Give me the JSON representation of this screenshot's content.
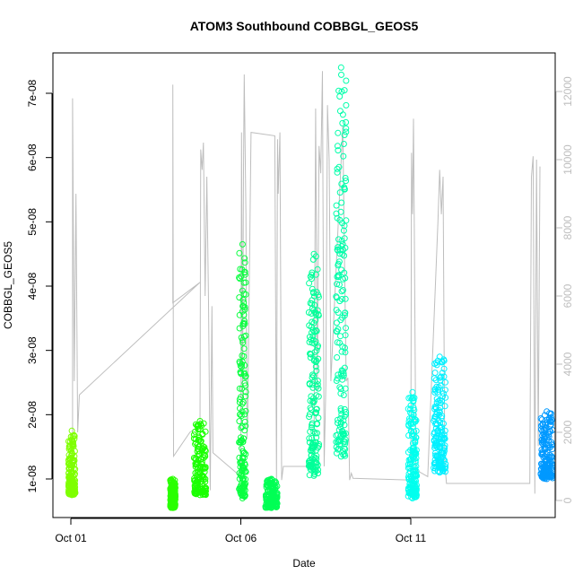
{
  "chart_data": {
    "type": "scatter",
    "title": "ATOM3 Southbound COBBGL_GEOS5",
    "xlabel": "Date",
    "ylabel": "COBBGL_GEOS5",
    "x_unit": "days",
    "xlim": [
      0.0,
      14.0
    ],
    "ylim": [
      5e-09,
      7.7e-08
    ],
    "y2lim": [
      -300,
      12700
    ],
    "x_ticks": [
      {
        "label": "Oct 01",
        "value": 0
      },
      {
        "label": "Oct 06",
        "value": 5
      },
      {
        "label": "Oct 11",
        "value": 10
      }
    ],
    "y_ticks": [
      {
        "label": "1e-08",
        "value": 1e-08
      },
      {
        "label": "2e-08",
        "value": 2e-08
      },
      {
        "label": "3e-08",
        "value": 3e-08
      },
      {
        "label": "4e-08",
        "value": 4e-08
      },
      {
        "label": "5e-08",
        "value": 5e-08
      },
      {
        "label": "6e-08",
        "value": 6e-08
      },
      {
        "label": "7e-08",
        "value": 7e-08
      }
    ],
    "y2_ticks": [
      {
        "label": "0",
        "value": 0
      },
      {
        "label": "2000",
        "value": 2000
      },
      {
        "label": "4000",
        "value": 4000
      },
      {
        "label": "6000",
        "value": 6000
      },
      {
        "label": "8000",
        "value": 8000
      },
      {
        "label": "10000",
        "value": 10000
      },
      {
        "label": "12000",
        "value": 12000
      }
    ],
    "scatter_clusters": [
      {
        "x": 0.03,
        "width": 0.2,
        "ymin": 7.5e-09,
        "ymax": 1.75e-08,
        "color": "#7fff00"
      },
      {
        "x": 3.0,
        "width": 0.15,
        "ymin": 5.5e-09,
        "ymax": 1e-08,
        "color": "#2aff00"
      },
      {
        "x": 3.8,
        "width": 0.35,
        "ymin": 7.5e-09,
        "ymax": 1.9e-08,
        "color": "#1aff00"
      },
      {
        "x": 5.05,
        "width": 0.2,
        "ymin": 7e-09,
        "ymax": 4.65e-08,
        "color": "#0aff40"
      },
      {
        "x": 5.9,
        "width": 0.35,
        "ymin": 5.5e-09,
        "ymax": 1e-08,
        "color": "#00ff55"
      },
      {
        "x": 7.15,
        "width": 0.3,
        "ymin": 1.05e-08,
        "ymax": 4.5e-08,
        "color": "#00ff99"
      },
      {
        "x": 7.95,
        "width": 0.3,
        "ymin": 1.35e-08,
        "ymax": 7.4e-08,
        "color": "#00ffaa"
      },
      {
        "x": 10.05,
        "width": 0.25,
        "ymin": 7e-09,
        "ymax": 2.35e-08,
        "color": "#00ffee"
      },
      {
        "x": 10.85,
        "width": 0.35,
        "ymin": 1.1e-08,
        "ymax": 2.9e-08,
        "color": "#00f0ff"
      },
      {
        "x": 14.0,
        "width": 0.35,
        "ymin": 1e-08,
        "ymax": 2.05e-08,
        "color": "#0099ff"
      }
    ],
    "secondary_series": {
      "name": "",
      "color": "#bebebe",
      "points": [
        [
          0.05,
          1800
        ],
        [
          0.05,
          11800
        ],
        [
          0.1,
          3500
        ],
        [
          0.15,
          9000
        ],
        [
          0.2,
          2000
        ],
        [
          0.25,
          3100
        ],
        [
          3.8,
          6400
        ],
        [
          3.0,
          5800
        ],
        [
          3.0,
          12200
        ],
        [
          3.02,
          1300
        ],
        [
          3.5,
          2000
        ],
        [
          3.8,
          2200
        ],
        [
          3.82,
          10300
        ],
        [
          3.86,
          9700
        ],
        [
          3.9,
          10500
        ],
        [
          3.95,
          6000
        ],
        [
          4.0,
          9500
        ],
        [
          4.05,
          5800
        ],
        [
          4.1,
          300
        ],
        [
          4.15,
          5700
        ],
        [
          4.18,
          1400
        ],
        [
          5.0,
          700
        ],
        [
          5.02,
          10800
        ],
        [
          5.05,
          2800
        ],
        [
          5.08,
          9700
        ],
        [
          5.1,
          12500
        ],
        [
          5.15,
          8400
        ],
        [
          5.18,
          1800
        ],
        [
          5.2,
          2300
        ],
        [
          5.3,
          10800
        ],
        [
          6.0,
          10700
        ],
        [
          6.05,
          500
        ],
        [
          6.08,
          10600
        ],
        [
          6.1,
          9000
        ],
        [
          6.15,
          10800
        ],
        [
          6.2,
          600
        ],
        [
          6.25,
          1000
        ],
        [
          7.15,
          1000
        ],
        [
          7.2,
          11500
        ],
        [
          7.25,
          3200
        ],
        [
          7.3,
          10400
        ],
        [
          7.35,
          9600
        ],
        [
          7.4,
          12600
        ],
        [
          7.45,
          1000
        ],
        [
          7.5,
          3400
        ],
        [
          7.55,
          11600
        ],
        [
          7.6,
          10000
        ],
        [
          7.65,
          3500
        ],
        [
          8.0,
          11000
        ],
        [
          8.05,
          7000
        ],
        [
          8.1,
          3500
        ],
        [
          8.15,
          3600
        ],
        [
          8.2,
          600
        ],
        [
          8.25,
          800
        ],
        [
          8.3,
          650
        ],
        [
          10.0,
          600
        ],
        [
          10.02,
          10200
        ],
        [
          10.05,
          8400
        ],
        [
          10.08,
          11200
        ],
        [
          10.1,
          8500
        ],
        [
          10.15,
          900
        ],
        [
          10.5,
          700
        ],
        [
          10.8,
          8200
        ],
        [
          10.85,
          9700
        ],
        [
          10.9,
          8400
        ],
        [
          10.95,
          9500
        ],
        [
          11.0,
          1100
        ],
        [
          11.05,
          500
        ],
        [
          13.5,
          500
        ],
        [
          13.55,
          9500
        ],
        [
          13.6,
          10100
        ],
        [
          13.65,
          200
        ],
        [
          13.7,
          10000
        ],
        [
          13.75,
          1600
        ],
        [
          13.8,
          9800
        ]
      ]
    },
    "grid": false,
    "legend": "none"
  }
}
